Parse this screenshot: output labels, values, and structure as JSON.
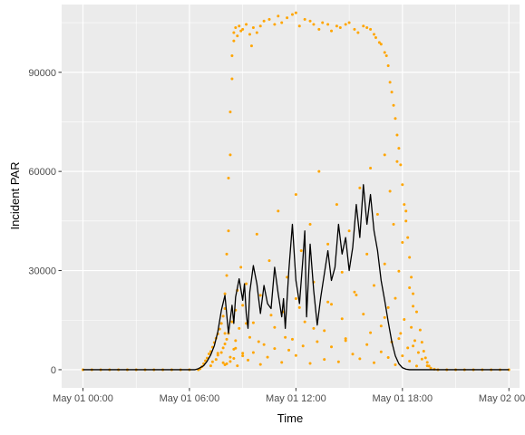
{
  "chart_data": {
    "type": "scatter",
    "title": "",
    "xlabel": "Time",
    "ylabel": "Incident PAR",
    "x_unit": "hours since May 01 00:00",
    "xlim": [
      -1.2,
      24.6
    ],
    "ylim": [
      -5500,
      110500
    ],
    "x_ticks": [
      {
        "value": 0,
        "label": "May 01 00:00"
      },
      {
        "value": 6,
        "label": "May 01 06:00"
      },
      {
        "value": 12,
        "label": "May 01 12:00"
      },
      {
        "value": 18,
        "label": "May 01 18:00"
      },
      {
        "value": 24,
        "label": "May 02 00:00"
      }
    ],
    "y_ticks": [
      {
        "value": 0,
        "label": "0"
      },
      {
        "value": 30000,
        "label": "30000"
      },
      {
        "value": 60000,
        "label": "60000"
      },
      {
        "value": 90000,
        "label": "90000"
      }
    ],
    "colors": {
      "panel_background": "#ebebeb",
      "grid": "#ffffff",
      "points": "#ffa500",
      "line": "#000000",
      "axis_text": "#4d4d4d",
      "axis_title": "#000000",
      "tick": "#333333"
    },
    "grid": true,
    "legend": "none",
    "series": [
      {
        "kind": "points",
        "color": "#ffa500",
        "x": [
          0.0,
          0.5,
          1.0,
          1.5,
          2.0,
          2.5,
          3.0,
          3.5,
          4.0,
          4.5,
          5.0,
          5.5,
          6.0,
          6.5,
          6.6,
          6.7,
          6.8,
          6.9,
          7.0,
          7.1,
          7.2,
          7.2,
          7.3,
          7.3,
          7.4,
          7.5,
          7.5,
          7.6,
          7.6,
          7.7,
          7.8,
          7.8,
          7.9,
          7.9,
          7.9,
          8.0,
          8.0,
          8.0,
          8.0,
          8.1,
          8.1,
          8.1,
          8.2,
          8.2,
          8.2,
          8.3,
          8.3,
          8.3,
          8.4,
          8.4,
          8.4,
          8.5,
          8.5,
          8.5,
          8.6,
          8.6,
          8.6,
          8.7,
          8.7,
          8.8,
          8.8,
          8.9,
          8.9,
          9.0,
          9.0,
          9.0,
          9.2,
          9.2,
          9.4,
          9.4,
          9.5,
          9.6,
          9.6,
          9.8,
          9.8,
          10.0,
          10.0,
          10.2,
          10.2,
          10.5,
          10.5,
          10.8,
          10.8,
          11.0,
          11.0,
          11.2,
          11.3,
          11.5,
          11.5,
          11.8,
          11.8,
          12.0,
          12.0,
          12.0,
          12.2,
          12.3,
          12.5,
          12.5,
          12.8,
          12.8,
          13.0,
          13.0,
          13.3,
          13.3,
          13.5,
          13.6,
          13.8,
          13.8,
          14.0,
          14.0,
          14.3,
          14.3,
          14.5,
          14.6,
          14.8,
          14.8,
          15.0,
          15.0,
          15.3,
          15.3,
          15.5,
          15.6,
          15.8,
          15.8,
          16.0,
          16.0,
          16.2,
          16.2,
          16.4,
          16.4,
          16.5,
          16.6,
          16.7,
          16.8,
          16.8,
          17.0,
          17.0,
          17.0,
          17.1,
          17.2,
          17.2,
          17.3,
          17.3,
          17.4,
          17.4,
          17.5,
          17.5,
          17.6,
          17.6,
          17.7,
          17.7,
          17.8,
          17.8,
          17.9,
          17.9,
          18.0,
          18.0,
          18.1,
          18.1,
          18.2,
          18.2,
          18.3,
          18.3,
          18.4,
          18.4,
          18.5,
          18.5,
          18.6,
          18.6,
          18.7,
          18.8,
          18.9,
          19.0,
          19.1,
          19.2,
          19.3,
          19.4,
          19.5,
          19.6,
          19.8,
          20.0,
          20.5,
          21.0,
          21.5,
          22.0,
          22.5,
          23.0,
          23.5,
          24.0,
          8.1,
          8.3,
          8.5,
          8.7,
          9.0,
          9.3,
          9.6,
          10.0,
          10.4,
          10.8,
          11.2,
          11.6,
          12.0,
          12.4,
          12.8,
          13.2,
          13.6,
          14.0,
          14.4,
          14.8,
          15.2,
          15.6,
          16.0,
          16.4,
          16.8,
          17.2,
          17.6,
          18.0,
          18.4,
          18.8,
          7.6,
          8.0,
          8.6,
          9.2,
          9.9,
          10.6,
          11.4,
          12.2,
          13.0,
          13.8,
          14.6,
          15.4,
          16.2,
          17.0,
          17.8,
          18.6,
          19.1,
          19.4
        ],
        "y": [
          0,
          0,
          0,
          0,
          0,
          0,
          0,
          0,
          0,
          0,
          0,
          0,
          0,
          0,
          300,
          900,
          1800,
          2700,
          3500,
          4800,
          5500,
          1200,
          6800,
          2400,
          8200,
          9500,
          3100,
          10800,
          4400,
          12300,
          14000,
          5200,
          16200,
          6600,
          2100,
          18500,
          23000,
          7800,
          1500,
          28500,
          35000,
          9200,
          42000,
          58000,
          11000,
          65000,
          78000,
          3800,
          88000,
          95000,
          14500,
          99500,
          102000,
          6200,
          103500,
          18000,
          8800,
          101000,
          24000,
          104000,
          12500,
          102500,
          31000,
          103000,
          19500,
          5000,
          104500,
          26000,
          101500,
          9800,
          98000,
          103500,
          14200,
          102000,
          41000,
          104000,
          22500,
          105500,
          7600,
          106000,
          33000,
          104500,
          12800,
          107000,
          48000,
          105000,
          17500,
          106500,
          28000,
          107500,
          9200,
          108000,
          53000,
          21500,
          104000,
          36000,
          106000,
          14500,
          105500,
          44000,
          104500,
          26500,
          103000,
          60000,
          105000,
          11800,
          104500,
          38000,
          102500,
          19800,
          104000,
          50000,
          103500,
          29500,
          104500,
          8800,
          105000,
          42000,
          103000,
          23500,
          102000,
          55000,
          104000,
          16800,
          103500,
          35000,
          103000,
          61000,
          101500,
          25500,
          100500,
          47000,
          99000,
          13200,
          98500,
          65000,
          96000,
          32000,
          95000,
          18800,
          92000,
          54000,
          87000,
          8400,
          84000,
          44000,
          80000,
          21600,
          76000,
          63000,
          71000,
          29800,
          67000,
          11000,
          62000,
          38500,
          56000,
          15200,
          50000,
          48000,
          45000,
          6600,
          40000,
          24800,
          34000,
          12800,
          28000,
          19200,
          23000,
          8800,
          17500,
          5200,
          12000,
          8300,
          5600,
          3600,
          2200,
          1100,
          450,
          150,
          0,
          0,
          0,
          0,
          0,
          0,
          0,
          0,
          0,
          1800,
          2500,
          3400,
          1200,
          4200,
          2900,
          5200,
          1600,
          3800,
          6400,
          2200,
          5900,
          4300,
          7200,
          1900,
          8500,
          3100,
          6900,
          2400,
          9400,
          4700,
          3300,
          7600,
          2100,
          5400,
          3700,
          1500,
          4200,
          2600,
          1100,
          5000,
          11000,
          6500,
          14000,
          8500,
          16500,
          9800,
          18800,
          12500,
          20500,
          15400,
          22600,
          11200,
          15800,
          9400,
          7200,
          3200,
          1200
        ]
      },
      {
        "kind": "line",
        "color": "#000000",
        "x": [
          0,
          6.3,
          6.5,
          6.8,
          7.0,
          7.2,
          7.4,
          7.6,
          7.8,
          8.0,
          8.2,
          8.4,
          8.5,
          8.6,
          8.8,
          9.0,
          9.1,
          9.2,
          9.3,
          9.4,
          9.6,
          9.8,
          10.0,
          10.2,
          10.4,
          10.6,
          10.8,
          11.0,
          11.2,
          11.3,
          11.4,
          11.6,
          11.8,
          12.0,
          12.2,
          12.4,
          12.5,
          12.6,
          12.7,
          12.8,
          13.0,
          13.2,
          13.4,
          13.6,
          13.8,
          14.0,
          14.2,
          14.4,
          14.6,
          14.8,
          15.0,
          15.2,
          15.4,
          15.6,
          15.8,
          16.0,
          16.2,
          16.4,
          16.6,
          16.8,
          17.0,
          17.2,
          17.4,
          17.6,
          17.8,
          18.0,
          18.2,
          18.4,
          18.6,
          18.8,
          19.0,
          19.2,
          19.4,
          19.6,
          19.8,
          20.0,
          24.0
        ],
        "y": [
          0,
          0,
          300,
          1200,
          2600,
          4500,
          7200,
          11500,
          18000,
          22500,
          11000,
          19500,
          14000,
          22000,
          27500,
          21000,
          26000,
          17000,
          12500,
          23500,
          31500,
          26000,
          17000,
          25500,
          20000,
          18500,
          31000,
          23000,
          16000,
          21500,
          12500,
          30000,
          44000,
          27000,
          20000,
          34000,
          42000,
          16000,
          27000,
          38000,
          24000,
          13500,
          22000,
          29000,
          36000,
          27000,
          31000,
          44000,
          35000,
          40000,
          30000,
          37000,
          50000,
          40000,
          56000,
          44000,
          53000,
          42000,
          36000,
          27000,
          21000,
          14500,
          8500,
          4200,
          1800,
          600,
          150,
          0,
          0,
          0,
          0,
          0,
          0,
          0,
          0,
          0,
          0
        ]
      }
    ]
  }
}
